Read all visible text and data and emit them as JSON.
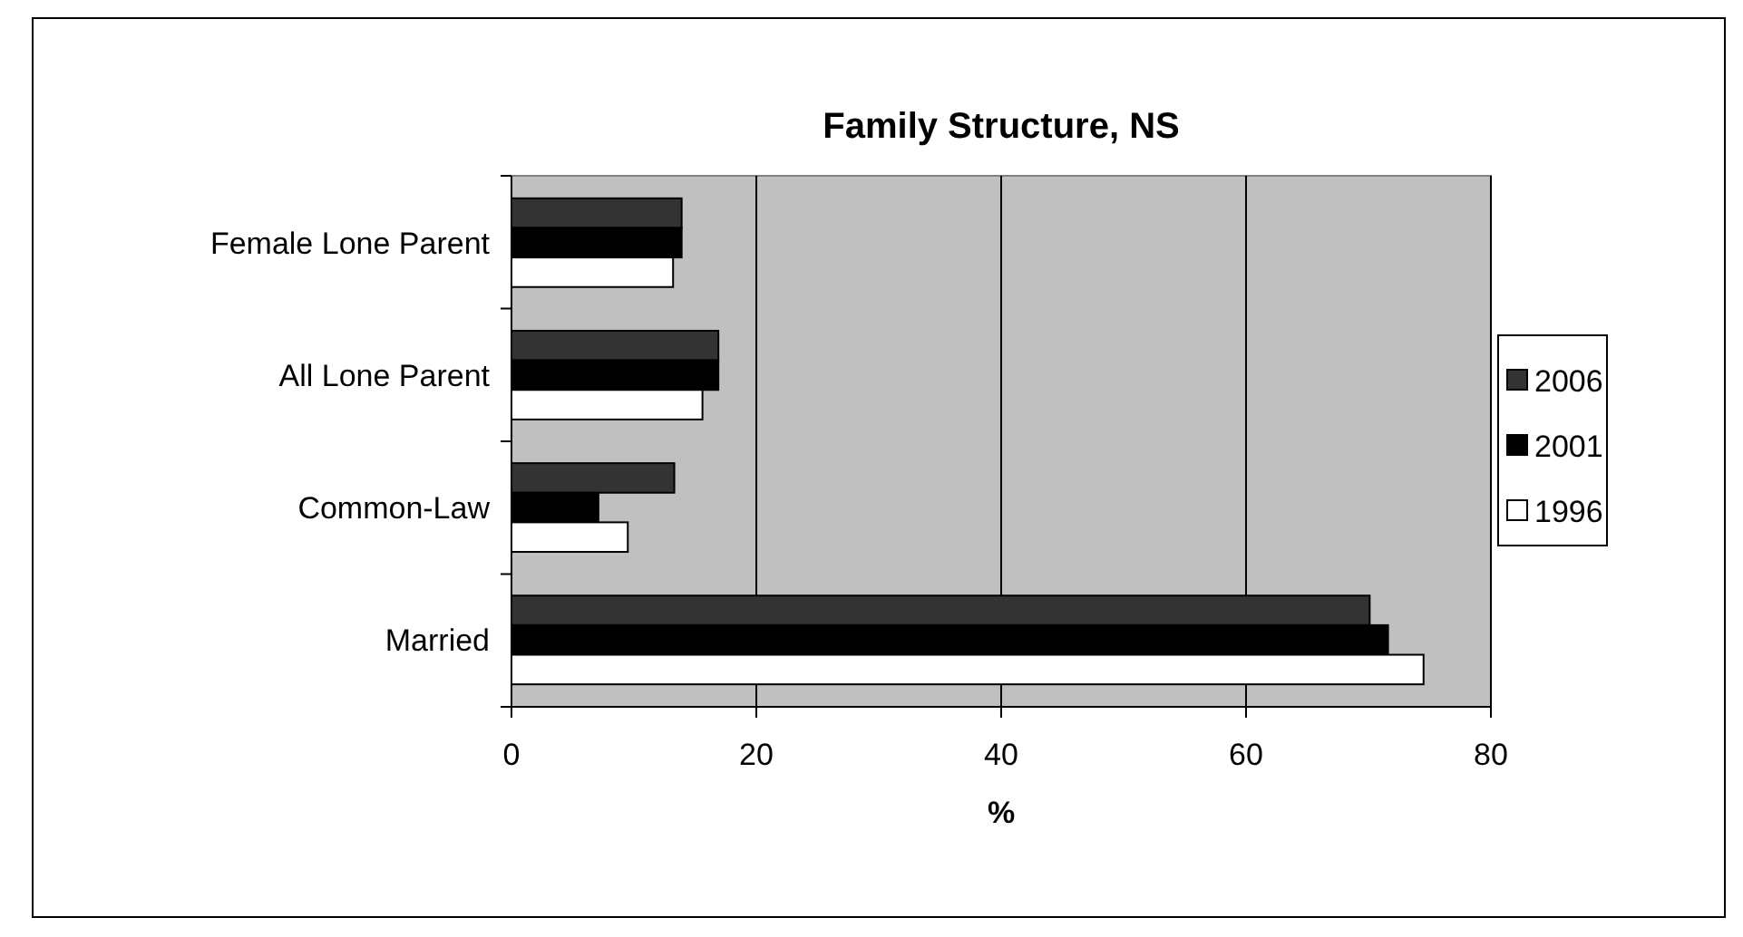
{
  "chart_data": {
    "type": "bar",
    "orientation": "horizontal",
    "title": "Family Structure, NS",
    "xlabel": "%",
    "categories": [
      "Female Lone Parent",
      "All Lone Parent",
      "Common-Law",
      "Married"
    ],
    "series": [
      {
        "name": "2006",
        "color": "#333333",
        "values": [
          13.9,
          16.9,
          13.3,
          70.1
        ]
      },
      {
        "name": "2001",
        "color": "#000000",
        "values": [
          13.9,
          16.9,
          7.1,
          71.6
        ]
      },
      {
        "name": "1996",
        "color": "#ffffff",
        "values": [
          13.2,
          15.6,
          9.5,
          74.5
        ]
      }
    ],
    "xlim": [
      0,
      80
    ],
    "xticks": [
      0,
      20,
      40,
      60,
      80
    ],
    "grid": "x",
    "legend": "right"
  }
}
